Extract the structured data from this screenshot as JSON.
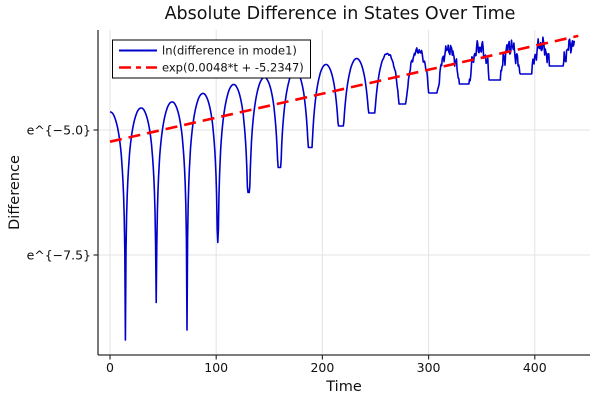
{
  "figure": {
    "title": "Absolute Difference in States Over Time",
    "xlabel": "Time",
    "ylabel": "Difference"
  },
  "chart_data": {
    "type": "line",
    "title": "Absolute Difference in States Over Time",
    "xlabel": "Time",
    "ylabel": "Difference",
    "grid": true,
    "legend_position": "top-left-inside",
    "x_axis": {
      "lim": [
        -11.3,
        452
      ],
      "ticks": [
        0,
        100,
        200,
        300,
        400
      ],
      "labels": [
        "0",
        "100",
        "200",
        "300",
        "400"
      ]
    },
    "y_axis": {
      "scale": "ln",
      "lim": [
        -9.5,
        -3.0
      ],
      "ticks": [
        -5.0,
        -7.5
      ],
      "labels": [
        "e^{−5.0}",
        "e^{−7.5}"
      ]
    },
    "series": [
      {
        "name": "ln(difference in mode1)",
        "color": "#0000cd",
        "style": "solid",
        "width": 1.6,
        "kind": "ln_abs_oscillation",
        "end_t": 437.5,
        "peaks_t_ln": [
          [
            0,
            -4.64
          ],
          [
            29,
            -4.56
          ],
          [
            58,
            -4.44
          ],
          [
            87,
            -4.27
          ],
          [
            116,
            -4.09
          ],
          [
            145,
            -3.95
          ],
          [
            174,
            -3.81
          ],
          [
            203,
            -3.69
          ],
          [
            232,
            -3.57
          ],
          [
            261,
            -3.47
          ],
          [
            290,
            -3.4
          ],
          [
            319,
            -3.36
          ],
          [
            348,
            -3.32
          ],
          [
            377,
            -3.3
          ],
          [
            406,
            -3.28
          ],
          [
            435,
            -3.25
          ]
        ],
        "dips_t_ln": [
          [
            14.5,
            -9.2
          ],
          [
            43.5,
            -8.45
          ],
          [
            72.5,
            -9.0
          ],
          [
            101.5,
            -7.25
          ],
          [
            130.5,
            -6.25
          ],
          [
            159.5,
            -5.75
          ],
          [
            188.5,
            -5.35
          ],
          [
            217.5,
            -4.92
          ],
          [
            246.5,
            -4.66
          ],
          [
            275.5,
            -4.48
          ],
          [
            304.5,
            -4.26
          ],
          [
            333.5,
            -4.08
          ],
          [
            362.5,
            -4.0
          ],
          [
            391.5,
            -3.88
          ],
          [
            420.5,
            -3.72
          ],
          [
            449.5,
            -3.8
          ]
        ],
        "wobble": {
          "onset_t": 250,
          "ramp_t": 100,
          "amplitude_ln": 0.22
        }
      },
      {
        "name": "exp(0.0048*t + -5.2347)",
        "color": "#ff0000",
        "style": "dashed",
        "width": 2.6,
        "kind": "exp_fit_ln",
        "slope": 0.0048,
        "intercept": -5.2347,
        "t_range": [
          0,
          441
        ]
      }
    ]
  }
}
